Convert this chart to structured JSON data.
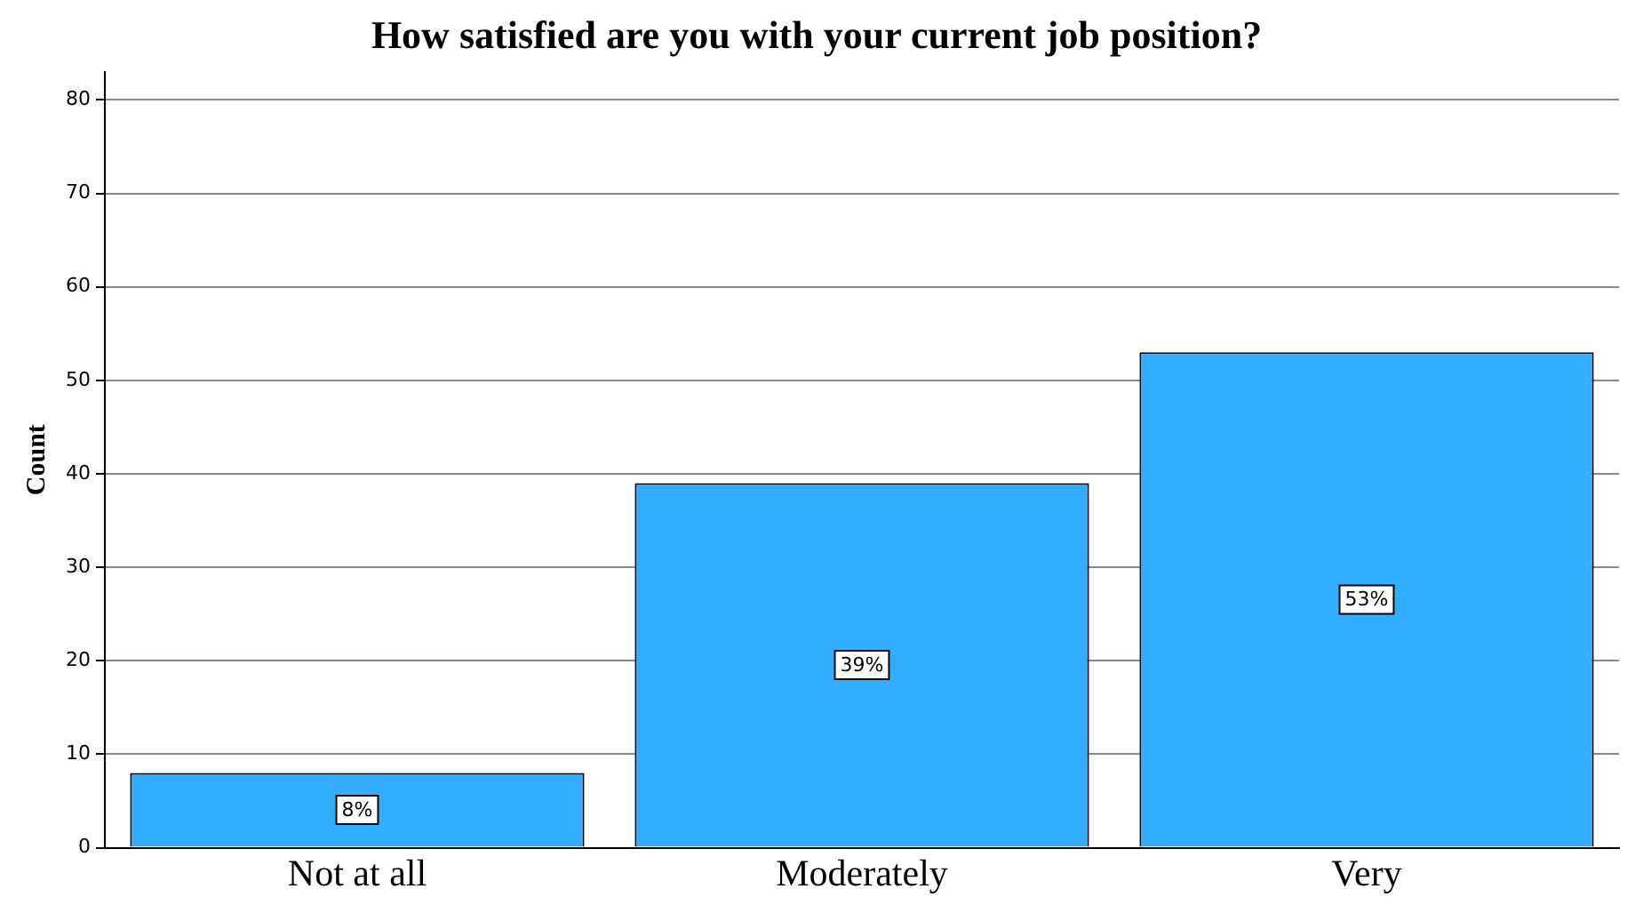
{
  "chart_data": {
    "type": "bar",
    "title": "How satisfied are you with your current job position?",
    "ylabel": "Count",
    "categories": [
      "Not at all",
      "Moderately",
      "Very"
    ],
    "values": [
      8,
      39,
      53
    ],
    "value_labels": [
      "8%",
      "39%",
      "53%"
    ],
    "color": "#33adff",
    "ylim": [
      0,
      83
    ],
    "yticks": [
      0,
      10,
      20,
      30,
      40,
      50,
      60,
      70,
      80
    ],
    "grid": "y",
    "legend": false
  }
}
